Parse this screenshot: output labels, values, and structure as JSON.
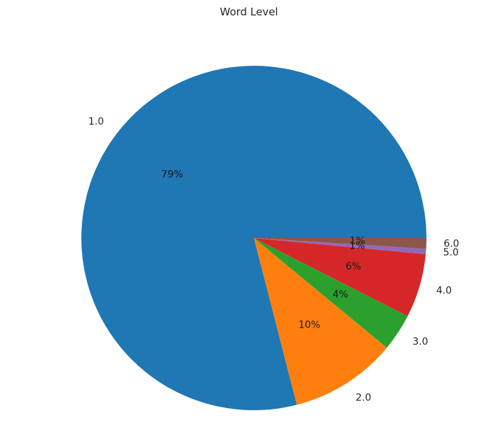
{
  "chart_data": {
    "type": "pie",
    "title": "Word Level",
    "categories": [
      "1.0",
      "2.0",
      "3.0",
      "4.0",
      "5.0",
      "6.0"
    ],
    "values": [
      79.0,
      10.0,
      3.5,
      6.0,
      0.5,
      1.0
    ],
    "percent_labels": [
      "79%",
      "10%",
      "4%",
      "6%",
      "1%",
      "1%"
    ],
    "colors": [
      "#1f77b4",
      "#ff7f0e",
      "#2ca02c",
      "#d62728",
      "#9467bd",
      "#8c564b"
    ],
    "start_angle": 0,
    "direction": "counterclockwise",
    "legend": "none"
  }
}
